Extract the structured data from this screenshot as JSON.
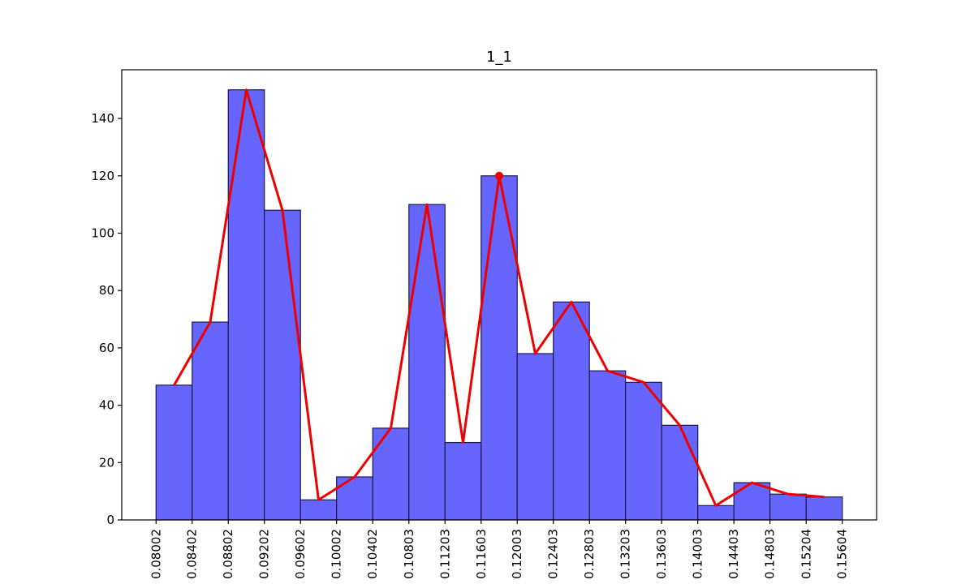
{
  "chart_data": {
    "type": "bar",
    "title": "1_1",
    "xlabel": "",
    "ylabel": "",
    "bin_edges": [
      0.08002,
      0.08402,
      0.08802,
      0.09202,
      0.09602,
      0.10002,
      0.10402,
      0.10803,
      0.11203,
      0.11603,
      0.12003,
      0.12403,
      0.12803,
      0.13203,
      0.13603,
      0.14003,
      0.14403,
      0.14803,
      0.15204,
      0.15604
    ],
    "x_tick_labels": [
      "0.08002",
      "0.08402",
      "0.08802",
      "0.09202",
      "0.09602",
      "0.10002",
      "0.10402",
      "0.10803",
      "0.11203",
      "0.11603",
      "0.12003",
      "0.12403",
      "0.12803",
      "0.13203",
      "0.13603",
      "0.14003",
      "0.14403",
      "0.14803",
      "0.15204",
      "0.15604"
    ],
    "values": [
      47,
      69,
      150,
      108,
      7,
      15,
      32,
      110,
      27,
      120,
      58,
      76,
      52,
      48,
      33,
      5,
      13,
      9,
      8
    ],
    "curve_values": [
      47,
      69,
      150,
      108,
      7,
      15,
      32,
      110,
      27,
      120,
      58,
      76,
      52,
      48,
      33,
      5,
      13,
      9,
      8
    ],
    "marked_point": {
      "x": 0.11803,
      "y": 120
    },
    "ylim": [
      0,
      157
    ],
    "y_ticks": [
      0,
      20,
      40,
      60,
      80,
      100,
      120,
      140
    ],
    "xlim": [
      0.07622,
      0.15984
    ],
    "grid": false,
    "colors": {
      "bars": "#6666ff",
      "bar_edge": "#1a1a4d",
      "curve": "#ee0000"
    }
  }
}
